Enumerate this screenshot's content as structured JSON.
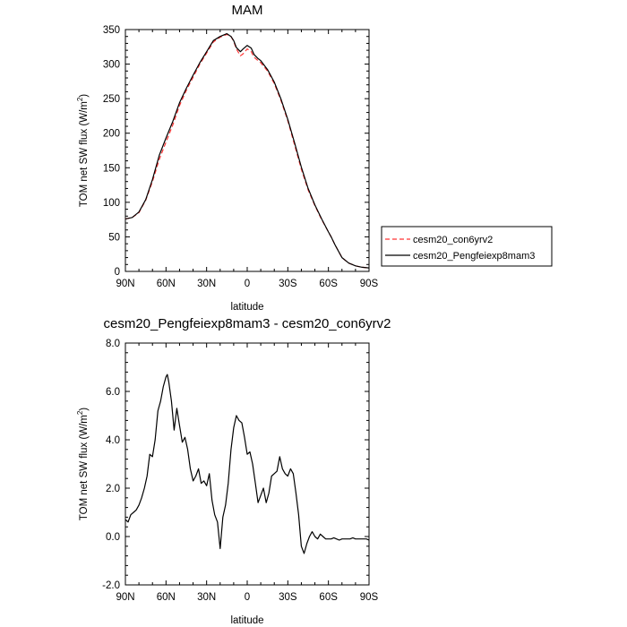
{
  "legend": {
    "entries": [
      {
        "label": "cesm20_con6yrv2",
        "color": "#ff3333",
        "dash": true
      },
      {
        "label": "cesm20_Pengfeiexp8mam3",
        "color": "#000000",
        "dash": false
      }
    ]
  },
  "chart_data": [
    {
      "type": "line",
      "title": "MAM",
      "xlabel": "latitude",
      "ylabel": "TOM net SW flux (W/m",
      "ylabel_sup": "2",
      "ylabel_close": ")",
      "xlim": [
        90,
        -90
      ],
      "ylim": [
        0,
        350
      ],
      "x_ticks": [
        90,
        60,
        30,
        0,
        -30,
        -60,
        -90
      ],
      "x_tick_labels": [
        "90N",
        "60N",
        "30N",
        "0",
        "30S",
        "60S",
        "90S"
      ],
      "y_ticks": [
        0,
        50,
        100,
        150,
        200,
        250,
        300,
        350
      ],
      "y_tick_labels": [
        "0",
        "50",
        "100",
        "150",
        "200",
        "250",
        "300",
        "350"
      ],
      "series": [
        {
          "name": "cesm20_con6yrv2",
          "color": "#ff3333",
          "dash": true,
          "x": [
            90,
            85,
            80,
            75,
            70,
            65,
            60,
            55,
            50,
            45,
            40,
            35,
            30,
            25,
            20,
            15,
            12,
            10,
            8,
            5,
            3,
            0,
            -3,
            -5,
            -8,
            -10,
            -15,
            -20,
            -25,
            -30,
            -35,
            -40,
            -45,
            -50,
            -55,
            -60,
            -62,
            -65,
            -70,
            -75,
            -80,
            -85,
            -90
          ],
          "y": [
            76,
            78,
            85,
            103,
            130,
            162,
            187,
            212,
            240,
            262,
            281,
            300,
            316,
            332,
            339,
            343,
            340,
            333,
            322,
            312,
            315,
            322,
            318,
            310,
            305,
            302,
            290,
            272,
            247,
            218,
            183,
            148,
            118,
            95,
            75,
            57,
            50,
            38,
            20,
            12,
            8,
            6,
            5
          ]
        },
        {
          "name": "cesm20_Pengfeiexp8mam3",
          "color": "#000000",
          "dash": false,
          "x": [
            90,
            85,
            80,
            75,
            70,
            65,
            60,
            55,
            50,
            45,
            40,
            35,
            30,
            25,
            20,
            15,
            12,
            10,
            8,
            5,
            3,
            0,
            -3,
            -5,
            -8,
            -10,
            -15,
            -20,
            -25,
            -30,
            -35,
            -40,
            -45,
            -50,
            -55,
            -60,
            -62,
            -65,
            -70,
            -75,
            -80,
            -85,
            -90
          ],
          "y": [
            76,
            78,
            86,
            104,
            133,
            168,
            193,
            217,
            244,
            265,
            284,
            302,
            318,
            334,
            340,
            344,
            340,
            334,
            324,
            318,
            322,
            327,
            323,
            314,
            308,
            305,
            292,
            274,
            249,
            220,
            186,
            151,
            120,
            96,
            76,
            57,
            50,
            38,
            20,
            12,
            8,
            6,
            5
          ]
        }
      ]
    },
    {
      "type": "line",
      "title": "cesm20_Pengfeiexp8mam3 - cesm20_con6yrv2",
      "xlabel": "latitude",
      "ylabel": "TOM net SW flux (W/m",
      "ylabel_sup": "2",
      "ylabel_close": ")",
      "xlim": [
        90,
        -90
      ],
      "ylim": [
        -2,
        8
      ],
      "x_ticks": [
        90,
        60,
        30,
        0,
        -30,
        -60,
        -90
      ],
      "x_tick_labels": [
        "90N",
        "60N",
        "30N",
        "0",
        "30S",
        "60S",
        "90S"
      ],
      "y_ticks": [
        -2,
        0,
        2,
        4,
        6,
        8
      ],
      "y_tick_labels": [
        "-2.0",
        "0.0",
        "2.0",
        "4.0",
        "6.0",
        "8.0"
      ],
      "series": [
        {
          "color": "#000000",
          "dash": false,
          "x": [
            90,
            88,
            86,
            84,
            82,
            80,
            78,
            76,
            74,
            72,
            70,
            68,
            66,
            64,
            62,
            60,
            59,
            58,
            56,
            54,
            52,
            50,
            48,
            46,
            44,
            42,
            40,
            38,
            36,
            34,
            32,
            30,
            28,
            26,
            24,
            22,
            20,
            18,
            16,
            14,
            12,
            10,
            8,
            6,
            4,
            2,
            0,
            -2,
            -4,
            -6,
            -8,
            -10,
            -12,
            -14,
            -16,
            -18,
            -20,
            -22,
            -24,
            -26,
            -28,
            -30,
            -32,
            -34,
            -36,
            -38,
            -40,
            -42,
            -44,
            -46,
            -48,
            -50,
            -52,
            -54,
            -56,
            -58,
            -60,
            -62,
            -64,
            -66,
            -68,
            -70,
            -72,
            -74,
            -76,
            -78,
            -80,
            -82,
            -84,
            -86,
            -88,
            -90
          ],
          "y": [
            0.7,
            0.6,
            0.9,
            1.0,
            1.1,
            1.3,
            1.6,
            2.0,
            2.5,
            3.4,
            3.3,
            4.0,
            5.2,
            5.6,
            6.2,
            6.6,
            6.7,
            6.4,
            5.6,
            4.4,
            5.3,
            4.6,
            3.9,
            4.1,
            3.6,
            2.8,
            2.3,
            2.5,
            2.8,
            2.2,
            2.3,
            2.1,
            2.6,
            1.5,
            0.9,
            0.6,
            -0.5,
            0.8,
            1.3,
            2.2,
            3.6,
            4.5,
            5.0,
            4.8,
            4.7,
            4.1,
            3.4,
            3.5,
            3.0,
            2.2,
            1.4,
            1.7,
            2.0,
            1.4,
            1.8,
            2.5,
            2.6,
            2.7,
            3.3,
            2.8,
            2.6,
            2.5,
            2.8,
            2.6,
            1.8,
            0.9,
            -0.4,
            -0.7,
            -0.3,
            0.0,
            0.2,
            0.0,
            -0.1,
            0.1,
            0.0,
            -0.1,
            -0.1,
            -0.1,
            -0.05,
            -0.1,
            -0.15,
            -0.1,
            -0.1,
            -0.1,
            -0.1,
            -0.05,
            -0.1,
            -0.1,
            -0.1,
            -0.1,
            -0.1,
            -0.15
          ]
        }
      ]
    }
  ]
}
